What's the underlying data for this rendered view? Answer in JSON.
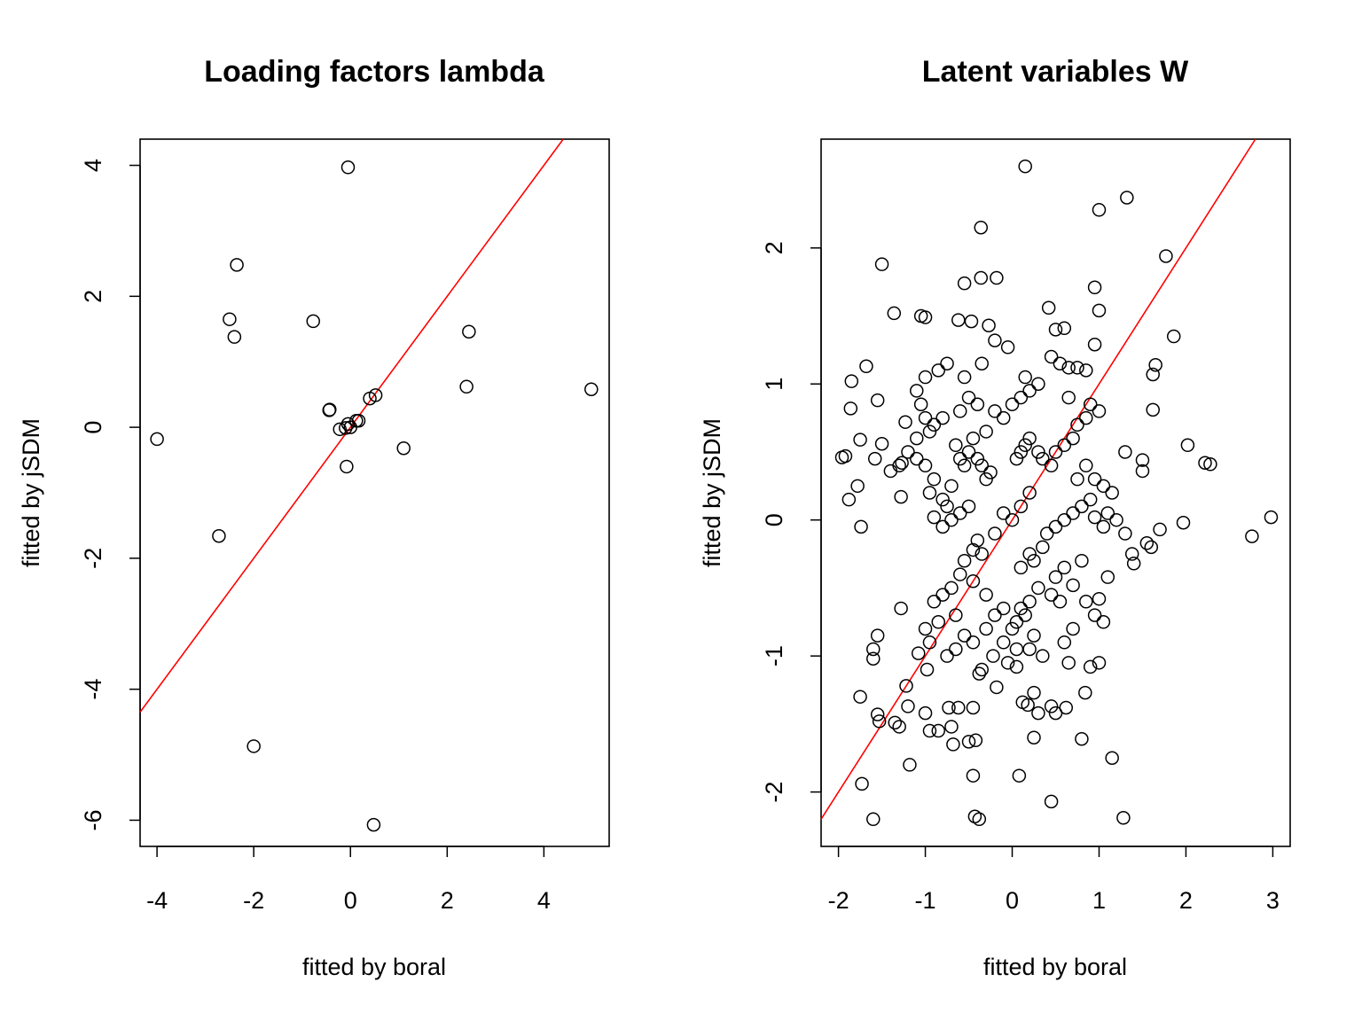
{
  "chart_data": [
    {
      "type": "scatter",
      "title": "Loading factors lambda",
      "xlabel": "fitted by boral",
      "ylabel": "fitted by jSDM",
      "xlim": [
        -4.35,
        5.35
      ],
      "ylim": [
        -6.4,
        4.4
      ],
      "xticks": [
        "-4",
        "-2",
        "0",
        "2",
        "4"
      ],
      "yticks": [
        "-6",
        "-4",
        "-2",
        "0",
        "2",
        "4"
      ],
      "reference_line": {
        "label": "identity",
        "slope": 1,
        "intercept": 0,
        "color": "#ff0000"
      },
      "point_style": "open-circle",
      "point_color": "#000000",
      "points": [
        [
          -0.05,
          3.97
        ],
        [
          -2.35,
          2.48
        ],
        [
          -2.5,
          1.65
        ],
        [
          -2.4,
          1.38
        ],
        [
          -0.77,
          1.62
        ],
        [
          2.45,
          1.46
        ],
        [
          2.4,
          0.62
        ],
        [
          4.98,
          0.58
        ],
        [
          0.52,
          0.49
        ],
        [
          0.4,
          0.44
        ],
        [
          -0.43,
          0.27
        ],
        [
          -0.44,
          0.26
        ],
        [
          0.12,
          0.1
        ],
        [
          0.17,
          0.1
        ],
        [
          -0.05,
          0.05
        ],
        [
          -0.22,
          -0.03
        ],
        [
          0.0,
          0.0
        ],
        [
          -0.1,
          -0.01
        ],
        [
          1.1,
          -0.32
        ],
        [
          -0.08,
          -0.6
        ],
        [
          -4.0,
          -0.18
        ],
        [
          -2.72,
          -1.66
        ],
        [
          -2.0,
          -4.87
        ],
        [
          0.48,
          -6.07
        ]
      ]
    },
    {
      "type": "scatter",
      "title": "Latent variables W",
      "xlabel": "fitted by boral",
      "ylabel": "fitted by jSDM",
      "xlim": [
        -2.2,
        3.2
      ],
      "ylim": [
        -2.4,
        2.8
      ],
      "xticks": [
        "-2",
        "-1",
        "0",
        "1",
        "2",
        "3"
      ],
      "yticks": [
        "-2",
        "-1",
        "0",
        "1",
        "2"
      ],
      "reference_line": {
        "label": "identity",
        "slope": 1,
        "intercept": 0,
        "color": "#ff0000"
      },
      "point_style": "open-circle",
      "point_color": "#000000",
      "points": [
        [
          0.15,
          2.6
        ],
        [
          1.32,
          2.37
        ],
        [
          1.0,
          2.28
        ],
        [
          -0.36,
          2.15
        ],
        [
          1.77,
          1.94
        ],
        [
          -1.5,
          1.88
        ],
        [
          -0.36,
          1.78
        ],
        [
          -0.18,
          1.78
        ],
        [
          -0.55,
          1.74
        ],
        [
          0.95,
          1.71
        ],
        [
          0.42,
          1.56
        ],
        [
          1.0,
          1.54
        ],
        [
          -1.36,
          1.52
        ],
        [
          -1.05,
          1.5
        ],
        [
          -1.0,
          1.49
        ],
        [
          -0.62,
          1.47
        ],
        [
          -0.47,
          1.46
        ],
        [
          -0.27,
          1.43
        ],
        [
          0.5,
          1.4
        ],
        [
          0.6,
          1.41
        ],
        [
          1.86,
          1.35
        ],
        [
          -0.2,
          1.32
        ],
        [
          -0.05,
          1.27
        ],
        [
          0.95,
          1.29
        ],
        [
          -1.68,
          1.13
        ],
        [
          1.65,
          1.14
        ],
        [
          1.62,
          1.07
        ],
        [
          -1.85,
          1.02
        ],
        [
          -1.55,
          0.88
        ],
        [
          -1.86,
          0.82
        ],
        [
          1.62,
          0.81
        ],
        [
          -1.23,
          0.72
        ],
        [
          -1.58,
          0.45
        ],
        [
          -1.75,
          0.59
        ],
        [
          -1.5,
          0.56
        ],
        [
          -1.92,
          0.47
        ],
        [
          -1.96,
          0.46
        ],
        [
          -1.3,
          0.4
        ],
        [
          -1.27,
          0.42
        ],
        [
          -1.4,
          0.36
        ],
        [
          -1.78,
          0.25
        ],
        [
          -1.88,
          0.15
        ],
        [
          -1.28,
          0.17
        ],
        [
          -1.74,
          -0.05
        ],
        [
          2.02,
          0.55
        ],
        [
          2.22,
          0.42
        ],
        [
          2.28,
          0.41
        ],
        [
          1.5,
          0.44
        ],
        [
          1.5,
          0.36
        ],
        [
          1.3,
          0.5
        ],
        [
          2.98,
          0.02
        ],
        [
          2.76,
          -0.12
        ],
        [
          1.97,
          -0.02
        ],
        [
          1.7,
          -0.07
        ],
        [
          1.55,
          -0.17
        ],
        [
          1.6,
          -0.2
        ],
        [
          1.38,
          -0.25
        ],
        [
          1.4,
          -0.32
        ],
        [
          1.1,
          -0.42
        ],
        [
          1.0,
          -0.58
        ],
        [
          -1.75,
          -1.3
        ],
        [
          -1.55,
          -1.43
        ],
        [
          -1.53,
          -1.48
        ],
        [
          -1.35,
          -1.49
        ],
        [
          -1.3,
          -1.52
        ],
        [
          -1.6,
          -0.95
        ],
        [
          -1.6,
          -1.02
        ],
        [
          -1.22,
          -1.22
        ],
        [
          -1.2,
          -1.37
        ],
        [
          -1.0,
          -1.42
        ],
        [
          -0.95,
          -1.55
        ],
        [
          -0.85,
          -1.55
        ],
        [
          -0.73,
          -1.38
        ],
        [
          -0.62,
          -1.38
        ],
        [
          -0.45,
          -1.38
        ],
        [
          -0.7,
          -1.52
        ],
        [
          -0.68,
          -1.65
        ],
        [
          -0.42,
          -1.62
        ],
        [
          -0.5,
          -1.63
        ],
        [
          -0.18,
          -1.23
        ],
        [
          0.12,
          -1.34
        ],
        [
          0.18,
          -1.36
        ],
        [
          0.25,
          -1.27
        ],
        [
          0.3,
          -1.42
        ],
        [
          0.45,
          -1.37
        ],
        [
          0.5,
          -1.42
        ],
        [
          0.62,
          -1.38
        ],
        [
          0.84,
          -1.27
        ],
        [
          0.8,
          -1.61
        ],
        [
          0.25,
          -1.6
        ],
        [
          1.15,
          -1.75
        ],
        [
          -1.18,
          -1.8
        ],
        [
          -1.73,
          -1.94
        ],
        [
          -0.45,
          -1.88
        ],
        [
          0.08,
          -1.88
        ],
        [
          0.45,
          -2.07
        ],
        [
          -0.43,
          -2.18
        ],
        [
          -0.38,
          -2.2
        ],
        [
          -1.6,
          -2.2
        ],
        [
          1.28,
          -2.19
        ],
        [
          -0.38,
          -1.13
        ],
        [
          -0.35,
          -1.1
        ],
        [
          -0.22,
          -1.0
        ],
        [
          0.05,
          -0.95
        ],
        [
          -1.28,
          -0.65
        ],
        [
          -1.55,
          -0.85
        ],
        [
          -1.0,
          -0.8
        ],
        [
          -0.95,
          -0.9
        ],
        [
          -1.08,
          -0.98
        ],
        [
          -0.98,
          -1.1
        ],
        [
          1.0,
          -1.05
        ],
        [
          0.9,
          -1.08
        ],
        [
          0.65,
          -1.05
        ],
        [
          0.35,
          -1.0
        ],
        [
          -0.1,
          -0.65
        ],
        [
          0.1,
          -0.65
        ],
        [
          0.15,
          -0.7
        ],
        [
          0.05,
          -0.75
        ],
        [
          0.2,
          -0.6
        ],
        [
          0.0,
          -0.8
        ],
        [
          -0.2,
          -0.7
        ],
        [
          -0.3,
          -0.55
        ],
        [
          -0.45,
          -0.45
        ],
        [
          0.3,
          -0.5
        ],
        [
          0.45,
          -0.55
        ],
        [
          0.5,
          -0.42
        ],
        [
          0.6,
          -0.35
        ],
        [
          0.7,
          -0.48
        ],
        [
          0.8,
          -0.3
        ],
        [
          0.55,
          -0.6
        ],
        [
          -0.55,
          -0.3
        ],
        [
          -0.45,
          -0.22
        ],
        [
          -0.4,
          -0.15
        ],
        [
          -0.35,
          -0.25
        ],
        [
          -0.6,
          -0.4
        ],
        [
          -0.7,
          -0.5
        ],
        [
          -0.8,
          -0.55
        ],
        [
          -0.9,
          -0.6
        ],
        [
          -0.85,
          -0.75
        ],
        [
          -0.65,
          -0.7
        ],
        [
          0.1,
          -0.35
        ],
        [
          0.2,
          -0.25
        ],
        [
          0.25,
          -0.3
        ],
        [
          0.35,
          -0.2
        ],
        [
          0.4,
          -0.1
        ],
        [
          0.5,
          -0.05
        ],
        [
          0.6,
          0.0
        ],
        [
          0.7,
          0.05
        ],
        [
          0.8,
          0.1
        ],
        [
          0.9,
          0.15
        ],
        [
          -0.1,
          0.05
        ],
        [
          0.0,
          0.0
        ],
        [
          0.1,
          0.1
        ],
        [
          0.2,
          0.2
        ],
        [
          -0.2,
          -0.1
        ],
        [
          -0.5,
          0.1
        ],
        [
          -0.6,
          0.05
        ],
        [
          -0.7,
          0.0
        ],
        [
          -0.8,
          -0.05
        ],
        [
          -0.9,
          0.02
        ],
        [
          1.1,
          0.05
        ],
        [
          1.2,
          0.0
        ],
        [
          1.3,
          -0.1
        ],
        [
          0.95,
          0.02
        ],
        [
          1.05,
          -0.05
        ],
        [
          -0.3,
          0.3
        ],
        [
          -0.25,
          0.35
        ],
        [
          -0.35,
          0.4
        ],
        [
          -0.4,
          0.45
        ],
        [
          -0.5,
          0.5
        ],
        [
          -0.55,
          0.4
        ],
        [
          -0.6,
          0.45
        ],
        [
          -0.65,
          0.55
        ],
        [
          -0.45,
          0.6
        ],
        [
          -0.3,
          0.65
        ],
        [
          0.05,
          0.45
        ],
        [
          0.1,
          0.5
        ],
        [
          0.15,
          0.55
        ],
        [
          0.2,
          0.6
        ],
        [
          0.3,
          0.5
        ],
        [
          0.35,
          0.45
        ],
        [
          0.45,
          0.4
        ],
        [
          0.5,
          0.5
        ],
        [
          0.6,
          0.55
        ],
        [
          0.7,
          0.6
        ],
        [
          0.75,
          0.7
        ],
        [
          0.85,
          0.75
        ],
        [
          0.9,
          0.85
        ],
        [
          1.0,
          0.8
        ],
        [
          0.65,
          0.9
        ],
        [
          -0.2,
          0.8
        ],
        [
          -0.1,
          0.75
        ],
        [
          0.0,
          0.85
        ],
        [
          0.1,
          0.9
        ],
        [
          0.2,
          0.95
        ],
        [
          -0.4,
          0.85
        ],
        [
          -0.5,
          0.9
        ],
        [
          -0.6,
          0.8
        ],
        [
          -0.8,
          0.75
        ],
        [
          -0.9,
          0.7
        ],
        [
          -1.0,
          0.75
        ],
        [
          -1.05,
          0.85
        ],
        [
          -1.1,
          0.95
        ],
        [
          -1.0,
          1.05
        ],
        [
          -0.85,
          1.1
        ],
        [
          -0.75,
          1.15
        ],
        [
          -0.55,
          1.05
        ],
        [
          -0.35,
          1.15
        ],
        [
          0.15,
          1.05
        ],
        [
          0.3,
          1.0
        ],
        [
          0.55,
          1.15
        ],
        [
          0.65,
          1.12
        ],
        [
          0.75,
          1.12
        ],
        [
          0.85,
          1.1
        ],
        [
          0.45,
          1.2
        ],
        [
          -1.2,
          0.5
        ],
        [
          -1.1,
          0.45
        ],
        [
          -1.0,
          0.4
        ],
        [
          -0.9,
          0.3
        ],
        [
          -0.95,
          0.2
        ],
        [
          -0.8,
          0.15
        ],
        [
          -0.7,
          0.25
        ],
        [
          -0.75,
          0.1
        ],
        [
          -1.1,
          0.6
        ],
        [
          -0.95,
          0.65
        ],
        [
          0.85,
          0.4
        ],
        [
          0.95,
          0.3
        ],
        [
          1.05,
          0.25
        ],
        [
          1.15,
          0.2
        ],
        [
          0.75,
          0.3
        ],
        [
          0.85,
          -0.6
        ],
        [
          0.95,
          -0.7
        ],
        [
          1.05,
          -0.75
        ],
        [
          0.7,
          -0.8
        ],
        [
          0.6,
          -0.9
        ],
        [
          -0.1,
          -0.9
        ],
        [
          -0.05,
          -1.05
        ],
        [
          0.05,
          -1.08
        ],
        [
          0.2,
          -0.95
        ],
        [
          0.25,
          -0.85
        ],
        [
          -0.3,
          -0.8
        ],
        [
          -0.45,
          -0.9
        ],
        [
          -0.55,
          -0.85
        ],
        [
          -0.65,
          -0.95
        ],
        [
          -0.75,
          -1.0
        ]
      ]
    }
  ]
}
